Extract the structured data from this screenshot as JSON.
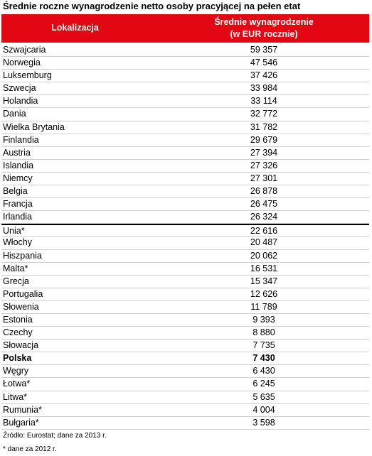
{
  "title": "Średnie roczne wynagrodzenie netto osoby pracyjącej na pełen etat",
  "header": {
    "col1": "Lokalizacja",
    "col2_line1": "Średnie wynagrodzenie",
    "col2_line2": "(w EUR rocznie)"
  },
  "rows": [
    {
      "name": "Szwajcaria",
      "value": "59 357"
    },
    {
      "name": "Norwegia",
      "value": "47 546"
    },
    {
      "name": "Luksemburg",
      "value": "37 426"
    },
    {
      "name": "Szwecja",
      "value": "33 984"
    },
    {
      "name": "Holandia",
      "value": "33 114"
    },
    {
      "name": "Dania",
      "value": "32 772"
    },
    {
      "name": "Wielka Brytania",
      "value": "31 782"
    },
    {
      "name": "Finlandia",
      "value": "29 679"
    },
    {
      "name": "Austria",
      "value": "27 394"
    },
    {
      "name": "Islandia",
      "value": "27 326"
    },
    {
      "name": "Niemcy",
      "value": "27 301"
    },
    {
      "name": "Belgia",
      "value": "26 878"
    },
    {
      "name": "Francja",
      "value": "26 475"
    },
    {
      "name": "Irlandia",
      "value": "26 324"
    },
    {
      "name": "Unia*",
      "value": "22 616",
      "separator": true
    },
    {
      "name": "Włochy",
      "value": "20 487"
    },
    {
      "name": "Hiszpania",
      "value": "20 062"
    },
    {
      "name": "Malta*",
      "value": "16 531"
    },
    {
      "name": "Grecja",
      "value": "15 347"
    },
    {
      "name": "Portugalia",
      "value": "12 626"
    },
    {
      "name": "Słowenia",
      "value": "11 789"
    },
    {
      "name": "Estonia",
      "value": "9 393"
    },
    {
      "name": "Czechy",
      "value": "8 880"
    },
    {
      "name": "Słowacja",
      "value": "7 735"
    },
    {
      "name": "Polska",
      "value": "7 430",
      "bold": true
    },
    {
      "name": "Węgry",
      "value": "6 430"
    },
    {
      "name": "Łotwa*",
      "value": "6 245"
    },
    {
      "name": "Litwa*",
      "value": "5 635"
    },
    {
      "name": "Rumunia*",
      "value": "4 004"
    },
    {
      "name": "Bułgaria*",
      "value": "3 598"
    }
  ],
  "notes": {
    "source": "Źródło: Eurostat; dane za 2013 r.",
    "footnote": "* dane za 2012 r."
  },
  "colors": {
    "header_bg": "#e30613",
    "header_text": "#ffffff"
  }
}
